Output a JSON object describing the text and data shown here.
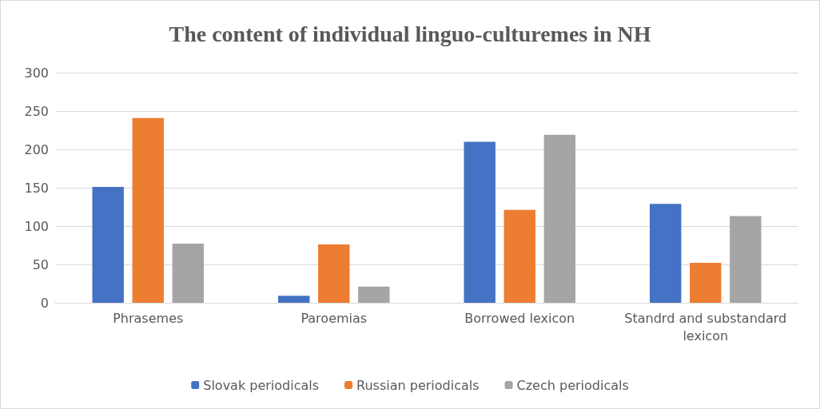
{
  "chart_data": {
    "type": "bar",
    "title": "The content of individual linguo-culturemes in NH",
    "categories": [
      "Phrasemes",
      "Paroemias",
      "Borrowed lexicon",
      "Standrd and substandard\nlexicon"
    ],
    "series": [
      {
        "name": "Slovak periodicals",
        "color": "#4472c4",
        "values": [
          151,
          9,
          210,
          129
        ]
      },
      {
        "name": "Russian periodicals",
        "color": "#ed7d31",
        "values": [
          241,
          76,
          121,
          52
        ]
      },
      {
        "name": "Czech periodicals",
        "color": "#a5a5a5",
        "values": [
          77,
          21,
          219,
          113
        ]
      }
    ],
    "ylim": [
      0,
      300
    ],
    "yticks": [
      0,
      50,
      100,
      150,
      200,
      250,
      300
    ],
    "grid": "y",
    "legend": "bottom"
  }
}
